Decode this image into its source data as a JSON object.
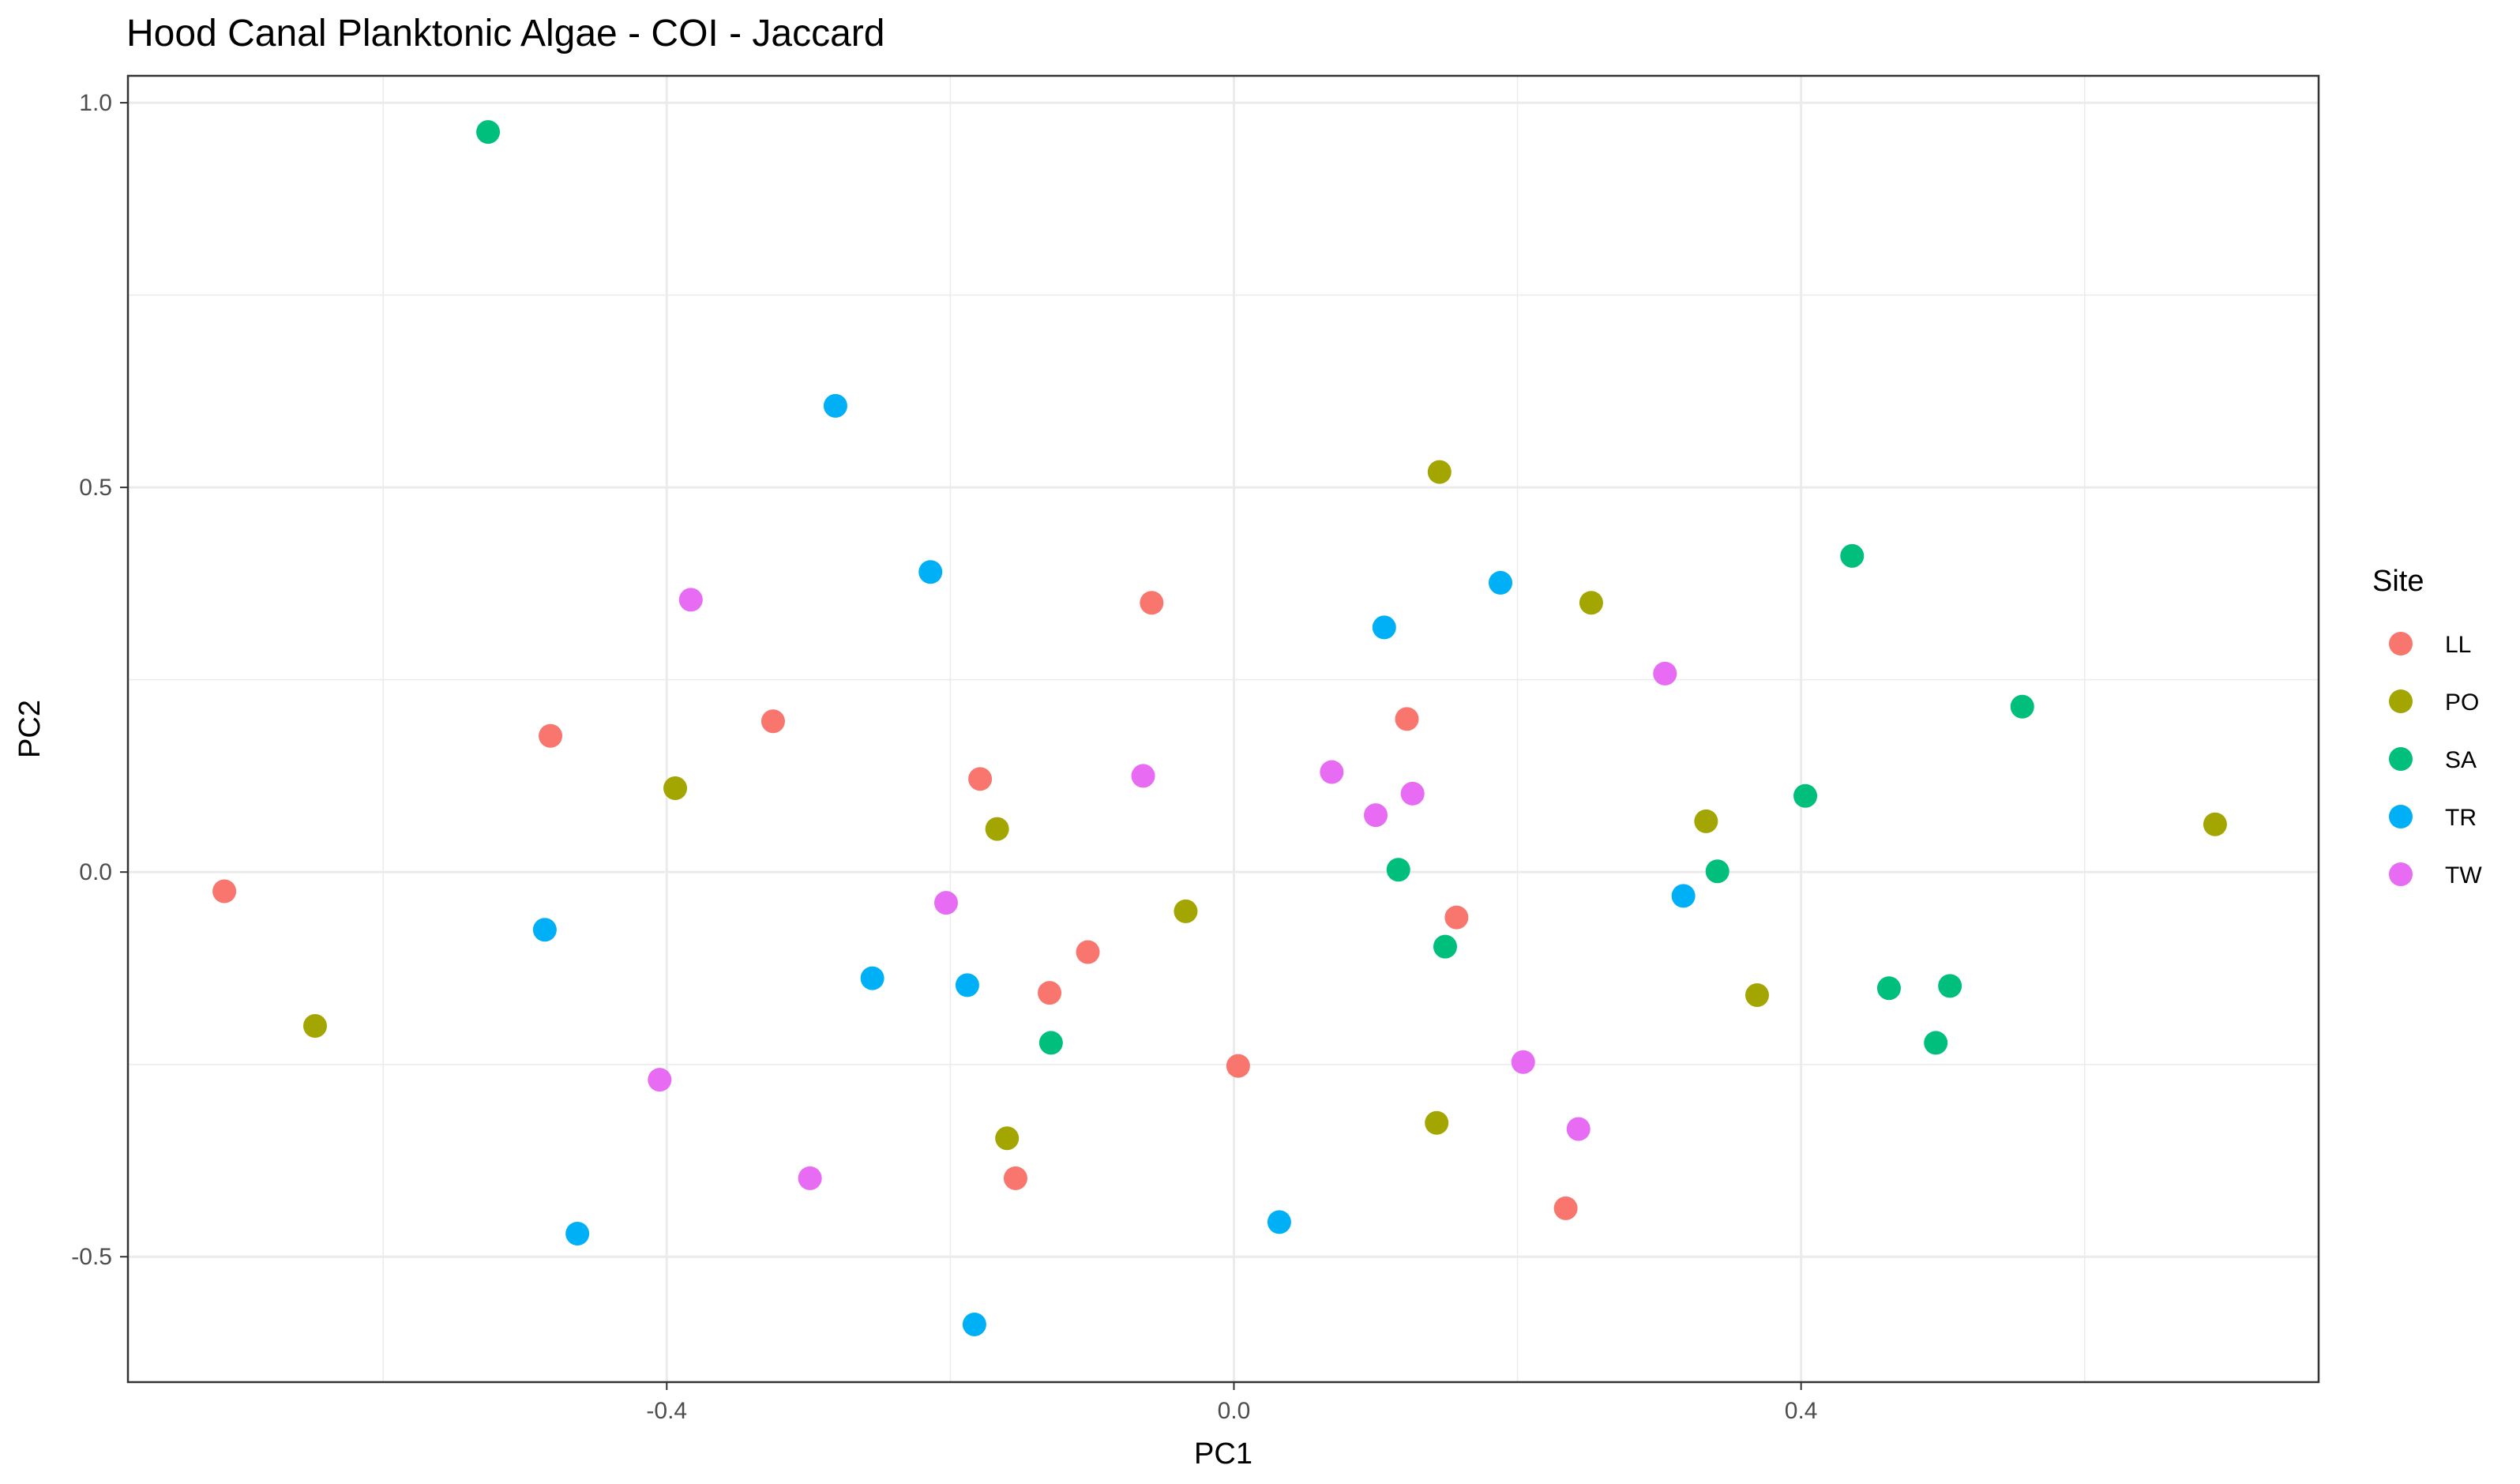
{
  "chart_data": {
    "type": "scatter",
    "title": "Hood Canal Planktonic Algae - COI - Jaccard",
    "xlabel": "PC1",
    "ylabel": "PC2",
    "xlim": [
      -0.78,
      0.765
    ],
    "ylim": [
      -0.663,
      1.035
    ],
    "x_ticks": [
      -0.4,
      0.0,
      0.4
    ],
    "x_tick_labels": [
      "-0.4",
      "0.0",
      "0.4"
    ],
    "y_ticks": [
      -0.5,
      0.0,
      0.5,
      1.0
    ],
    "y_tick_labels": [
      "-0.5",
      "0.0",
      "0.5",
      "1.0"
    ],
    "x_minor_ticks": [
      -0.6,
      -0.2,
      0.2,
      0.6
    ],
    "y_minor_ticks": [
      -0.25,
      0.25,
      0.75
    ],
    "grid": true,
    "legend": {
      "title": "Site",
      "position": "right"
    },
    "series": [
      {
        "name": "LL",
        "color": "#F8766D",
        "points": [
          [
            -0.712,
            -0.025
          ],
          [
            -0.482,
            0.177
          ],
          [
            -0.325,
            0.196
          ],
          [
            -0.179,
            0.121
          ],
          [
            -0.058,
            0.35
          ],
          [
            -0.103,
            -0.104
          ],
          [
            -0.13,
            -0.157
          ],
          [
            -0.154,
            -0.398
          ],
          [
            0.003,
            -0.252
          ],
          [
            0.122,
            0.199
          ],
          [
            0.157,
            -0.059
          ],
          [
            0.234,
            -0.437
          ]
        ]
      },
      {
        "name": "PO",
        "color": "#A3A500",
        "points": [
          [
            -0.648,
            -0.2
          ],
          [
            -0.394,
            0.109
          ],
          [
            -0.167,
            0.056
          ],
          [
            -0.16,
            -0.346
          ],
          [
            -0.034,
            -0.051
          ],
          [
            0.145,
            0.52
          ],
          [
            0.143,
            -0.326
          ],
          [
            0.252,
            0.35
          ],
          [
            0.333,
            0.066
          ],
          [
            0.369,
            -0.16
          ],
          [
            0.692,
            0.062
          ]
        ]
      },
      {
        "name": "SA",
        "color": "#00BF7D",
        "points": [
          [
            -0.526,
            0.962
          ],
          [
            -0.129,
            -0.222
          ],
          [
            0.116,
            0.003
          ],
          [
            0.149,
            -0.097
          ],
          [
            0.341,
            0.001
          ],
          [
            0.403,
            0.099
          ],
          [
            0.436,
            0.411
          ],
          [
            0.462,
            -0.151
          ],
          [
            0.495,
            -0.222
          ],
          [
            0.505,
            -0.148
          ],
          [
            0.556,
            0.215
          ]
        ]
      },
      {
        "name": "TR",
        "color": "#00B0F6",
        "points": [
          [
            -0.281,
            0.606
          ],
          [
            -0.214,
            0.39
          ],
          [
            -0.486,
            -0.075
          ],
          [
            -0.255,
            -0.138
          ],
          [
            -0.188,
            -0.147
          ],
          [
            -0.463,
            -0.47
          ],
          [
            -0.183,
            -0.588
          ],
          [
            0.032,
            -0.455
          ],
          [
            0.106,
            0.318
          ],
          [
            0.188,
            0.376
          ],
          [
            0.317,
            -0.031
          ]
        ]
      },
      {
        "name": "TW",
        "color": "#E76BF3",
        "points": [
          [
            -0.383,
            0.354
          ],
          [
            -0.203,
            -0.04
          ],
          [
            -0.405,
            -0.27
          ],
          [
            -0.299,
            -0.398
          ],
          [
            -0.064,
            0.125
          ],
          [
            0.069,
            0.13
          ],
          [
            0.1,
            0.074
          ],
          [
            0.126,
            0.102
          ],
          [
            0.204,
            -0.247
          ],
          [
            0.243,
            -0.334
          ],
          [
            0.304,
            0.258
          ]
        ]
      }
    ]
  }
}
